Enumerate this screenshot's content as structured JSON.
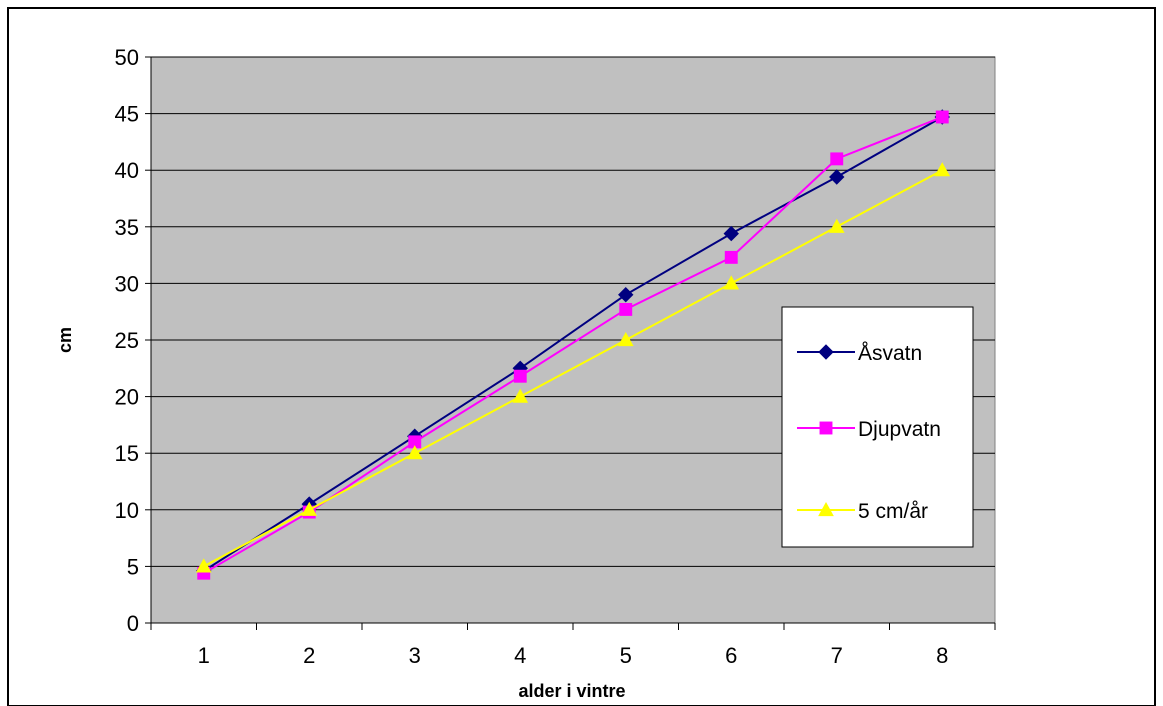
{
  "chart_data": {
    "type": "line",
    "title": "",
    "xlabel": "alder i vintre",
    "ylabel": "cm",
    "categories": [
      "1",
      "2",
      "3",
      "4",
      "5",
      "6",
      "7",
      "8"
    ],
    "ylim": [
      0,
      50
    ],
    "yticks": [
      0,
      5,
      10,
      15,
      20,
      25,
      30,
      35,
      40,
      45,
      50
    ],
    "grid": true,
    "plot_background": "#c0c0c0",
    "legend_position": "right",
    "series": [
      {
        "name": "Åsvatn",
        "color": "#000080",
        "marker": "diamond",
        "values": [
          4.6,
          10.5,
          16.5,
          22.5,
          29.0,
          34.4,
          39.4,
          44.7
        ]
      },
      {
        "name": "Djupvatn",
        "color": "#ff00ff",
        "marker": "square",
        "values": [
          4.4,
          9.8,
          16.0,
          21.8,
          27.7,
          32.3,
          41.0,
          44.7
        ]
      },
      {
        "name": "5 cm/år",
        "color": "#ffff00",
        "marker": "triangle",
        "values": [
          5,
          10,
          15,
          20,
          25,
          30,
          35,
          40
        ]
      }
    ]
  }
}
